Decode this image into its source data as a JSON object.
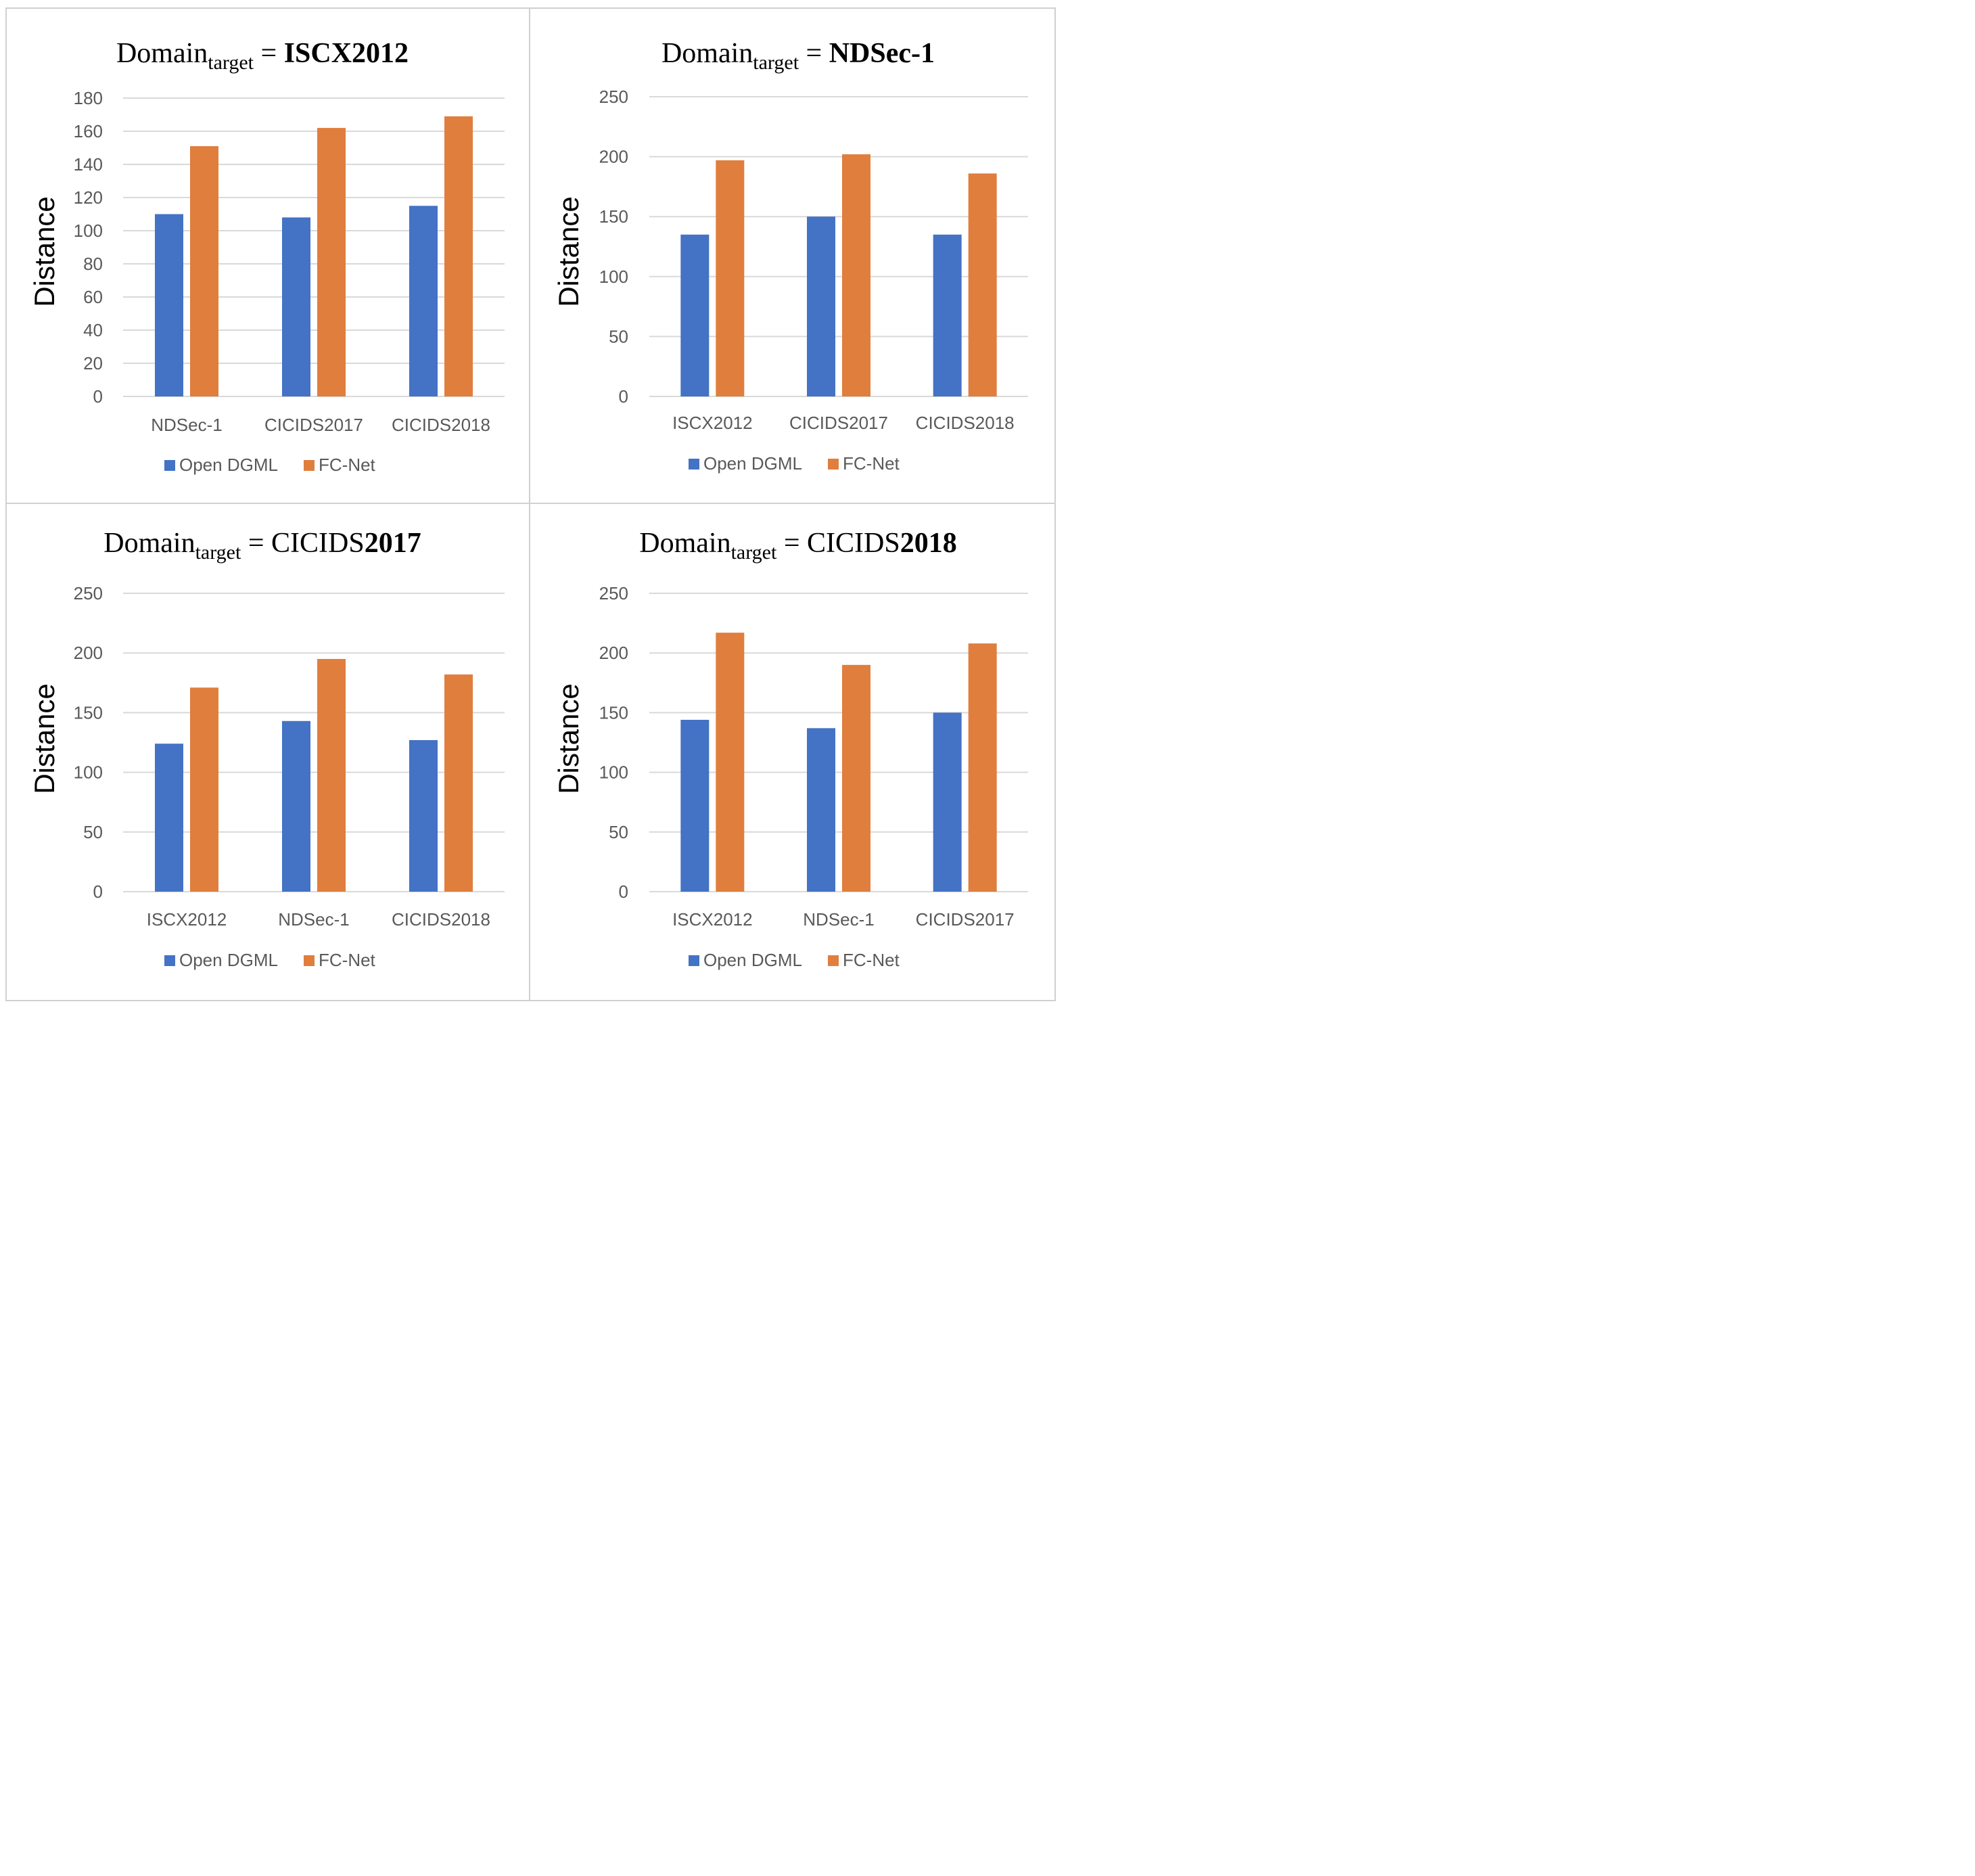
{
  "colors": {
    "open_dgml": "#4472C4",
    "fc_net": "#E07E3E",
    "grid": "#D9D9D9",
    "border": "#D0D0D0",
    "text": "#595959"
  },
  "chart_data": [
    {
      "type": "bar",
      "title": {
        "main": "Domain",
        "sub": "target",
        "eq": "=",
        "target": "ISCX2012"
      },
      "ylabel": "Distance",
      "xlabel": "",
      "ylim": [
        0,
        180
      ],
      "yticks": [
        0,
        20,
        40,
        60,
        80,
        100,
        120,
        140,
        160,
        180
      ],
      "categories": [
        "NDSec-1",
        "CICIDS2017",
        "CICIDS2018"
      ],
      "series": [
        {
          "name": "Open DGML",
          "values": [
            110,
            108,
            115
          ]
        },
        {
          "name": "FC-Net",
          "values": [
            151,
            162,
            169
          ]
        }
      ],
      "legend": "bottom",
      "grid": true
    },
    {
      "type": "bar",
      "title": {
        "main": "Domain",
        "sub": "target",
        "eq": "=",
        "target": "NDSec-1"
      },
      "ylabel": "Distance",
      "xlabel": "",
      "ylim": [
        0,
        250
      ],
      "yticks": [
        0,
        50,
        100,
        150,
        200,
        250
      ],
      "categories": [
        "ISCX2012",
        "CICIDS2017",
        "CICIDS2018"
      ],
      "series": [
        {
          "name": "Open DGML",
          "values": [
            135,
            150,
            135
          ]
        },
        {
          "name": "FC-Net",
          "values": [
            197,
            202,
            186
          ]
        }
      ],
      "legend": "bottom",
      "grid": true
    },
    {
      "type": "bar",
      "title": {
        "main": "Domain",
        "sub": "target",
        "eq": "=",
        "target_prefix": "CICIDS",
        "target_bold": "2017"
      },
      "ylabel": "Distance",
      "xlabel": "",
      "ylim": [
        0,
        250
      ],
      "yticks": [
        0,
        50,
        100,
        150,
        200,
        250
      ],
      "categories": [
        "ISCX2012",
        "NDSec-1",
        "CICIDS2018"
      ],
      "series": [
        {
          "name": "Open DGML",
          "values": [
            124,
            143,
            127
          ]
        },
        {
          "name": "FC-Net",
          "values": [
            171,
            195,
            182
          ]
        }
      ],
      "legend": "bottom",
      "grid": true
    },
    {
      "type": "bar",
      "title": {
        "main": "Domain",
        "sub": "target",
        "eq": "=",
        "target_prefix": "CICIDS",
        "target_bold": "2018"
      },
      "ylabel": "Distance",
      "xlabel": "",
      "ylim": [
        0,
        250
      ],
      "yticks": [
        0,
        50,
        100,
        150,
        200,
        250
      ],
      "categories": [
        "ISCX2012",
        "NDSec-1",
        "CICIDS2017"
      ],
      "series": [
        {
          "name": "Open DGML",
          "values": [
            144,
            137,
            150
          ]
        },
        {
          "name": "FC-Net",
          "values": [
            217,
            190,
            208
          ]
        }
      ],
      "legend": "bottom",
      "grid": true
    }
  ]
}
